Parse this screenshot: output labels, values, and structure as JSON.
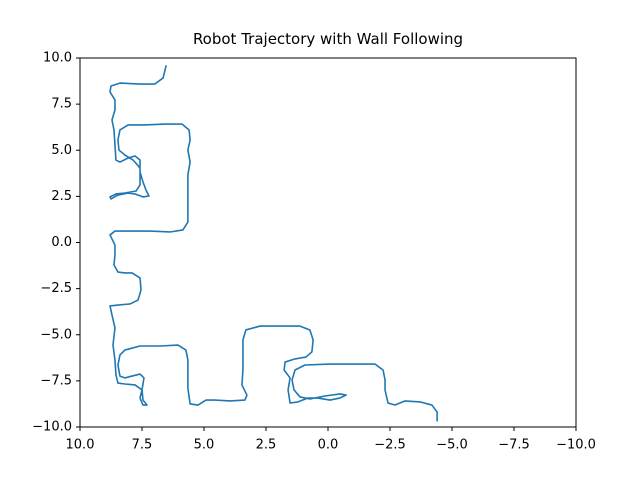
{
  "chart_data": {
    "type": "line",
    "title": "Robot Trajectory with Wall Following",
    "x": [
      6.53,
      6.65,
      6.98,
      7.58,
      8.39,
      8.75,
      8.79,
      8.59,
      8.59,
      8.71,
      8.63,
      8.59,
      8.55,
      8.39,
      8.06,
      7.78,
      7.58,
      7.58,
      7.46,
      7.34,
      7.22,
      7.46,
      7.78,
      8.06,
      8.47,
      8.75,
      8.79,
      8.55,
      8.19,
      7.74,
      7.58,
      7.58,
      7.58,
      7.86,
      8.19,
      8.43,
      8.47,
      8.39,
      8.06,
      7.38,
      6.57,
      5.89,
      5.6,
      5.56,
      5.65,
      5.56,
      5.65,
      5.65,
      5.65,
      5.85,
      6.37,
      7.18,
      7.98,
      8.59,
      8.79,
      8.59,
      8.59,
      8.63,
      8.47,
      8.19,
      7.9,
      7.58,
      7.54,
      7.66,
      7.98,
      8.47,
      8.79,
      8.71,
      8.59,
      8.67,
      8.59,
      8.55,
      8.47,
      8.19,
      7.78,
      7.5,
      7.46,
      7.3,
      7.46,
      7.58,
      7.5,
      7.42,
      7.58,
      7.9,
      8.19,
      8.39,
      8.47,
      8.39,
      8.19,
      7.58,
      6.77,
      6.05,
      5.73,
      5.65,
      5.65,
      5.65,
      5.56,
      5.24,
      4.92,
      4.56,
      3.95,
      3.35,
      3.27,
      3.47,
      3.43,
      3.43,
      3.43,
      3.31,
      2.74,
      1.94,
      1.13,
      0.73,
      0.6,
      0.65,
      0.89,
      1.33,
      1.73,
      1.77,
      1.53,
      1.61,
      1.53,
      1.21,
      0.81,
      0.4,
      -0.08,
      -0.48,
      -0.73,
      -0.48,
      0.12,
      0.73,
      1.13,
      1.37,
      1.45,
      1.33,
      0.93,
      -0.08,
      -1.09,
      -1.9,
      -2.22,
      -2.3,
      -2.3,
      -2.42,
      -2.7,
      -3.1,
      -3.71,
      -4.19,
      -4.4,
      -4.4
    ],
    "series": [
      {
        "color": "#1f77b4",
        "values": [
          9.57,
          8.92,
          8.59,
          8.59,
          8.64,
          8.48,
          8.16,
          7.72,
          7.18,
          6.64,
          6.1,
          5.28,
          4.47,
          4.36,
          4.58,
          4.69,
          4.47,
          3.82,
          3.28,
          2.85,
          2.52,
          2.47,
          2.63,
          2.68,
          2.57,
          2.36,
          2.47,
          2.63,
          2.68,
          2.79,
          3.12,
          3.66,
          4.04,
          4.47,
          4.74,
          5.01,
          5.56,
          6.1,
          6.37,
          6.37,
          6.42,
          6.42,
          6.1,
          5.56,
          5.01,
          4.36,
          3.66,
          2.3,
          1.11,
          0.68,
          0.57,
          0.62,
          0.62,
          0.62,
          0.41,
          -0.14,
          -0.68,
          -1.22,
          -1.6,
          -1.65,
          -1.65,
          -1.92,
          -2.57,
          -3.12,
          -3.33,
          -3.39,
          -3.44,
          -3.93,
          -4.63,
          -5.56,
          -6.37,
          -7.18,
          -7.62,
          -7.67,
          -7.72,
          -7.99,
          -8.54,
          -8.81,
          -8.81,
          -8.43,
          -7.99,
          -7.34,
          -7.13,
          -7.24,
          -7.34,
          -7.24,
          -6.64,
          -6.1,
          -5.83,
          -5.61,
          -5.61,
          -5.56,
          -5.83,
          -6.37,
          -7.18,
          -7.89,
          -8.75,
          -8.81,
          -8.54,
          -8.54,
          -8.59,
          -8.54,
          -8.27,
          -7.72,
          -6.91,
          -6.1,
          -5.28,
          -4.74,
          -4.53,
          -4.53,
          -4.53,
          -4.74,
          -5.28,
          -5.93,
          -6.21,
          -6.31,
          -6.48,
          -6.91,
          -7.34,
          -7.99,
          -8.7,
          -8.64,
          -8.43,
          -8.43,
          -8.54,
          -8.43,
          -8.27,
          -8.21,
          -8.32,
          -8.48,
          -8.37,
          -7.99,
          -7.45,
          -6.91,
          -6.64,
          -6.59,
          -6.59,
          -6.59,
          -6.91,
          -7.45,
          -7.99,
          -8.7,
          -8.81,
          -8.59,
          -8.64,
          -8.81,
          -9.19,
          -9.67
        ]
      }
    ],
    "xlim": [
      10,
      -10
    ],
    "xticks": [
      {
        "value": 10,
        "label": "10.0"
      },
      7.5,
      {
        "value": 5,
        "label": "5.0"
      },
      2.5,
      {
        "value": 0,
        "label": "0.0"
      },
      {
        "value": -2.5,
        "label": "−2.5"
      },
      {
        "value": -5,
        "label": "−5.0"
      },
      {
        "value": -7.5,
        "label": "−7.5"
      },
      {
        "value": -10,
        "label": "−10.0"
      }
    ],
    "ylim": [
      -10,
      10
    ],
    "yticks": [
      {
        "value": -10,
        "label": "−10.0"
      },
      {
        "value": -7.5,
        "label": "−7.5"
      },
      {
        "value": -5,
        "label": "−5.0"
      },
      {
        "value": -2.5,
        "label": "−2.5"
      },
      {
        "value": 0,
        "label": "0.0"
      },
      2.5,
      {
        "value": 5,
        "label": "5.0"
      },
      7.5,
      {
        "value": 10,
        "label": "10.0"
      }
    ],
    "grid": false
  }
}
